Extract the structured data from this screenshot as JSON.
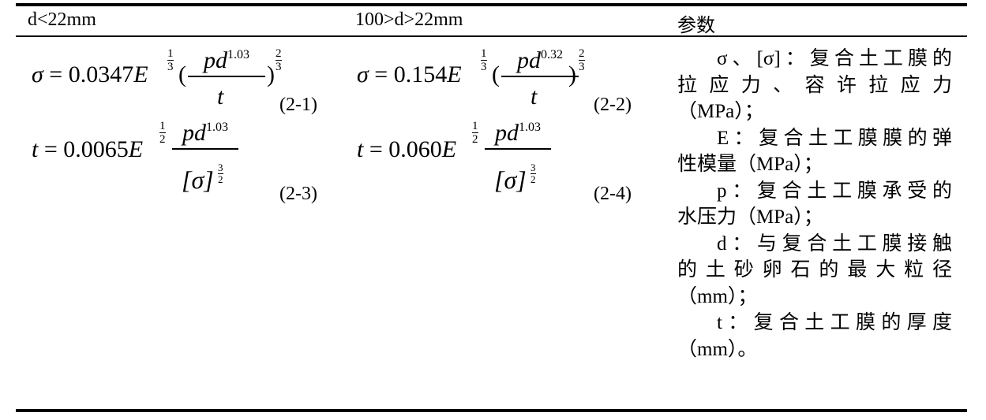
{
  "headers": [
    "d<22mm",
    "100>d>22mm",
    "参数"
  ],
  "formulas": {
    "f1": {
      "lhs": "σ",
      "coef": "0.0347",
      "base": "E",
      "exp_num": "1",
      "exp_den": "3",
      "num": "pd",
      "num_exp": "1.03",
      "den": "t",
      "out_num": "2",
      "out_den": "3",
      "label": "(2-1)"
    },
    "f2": {
      "lhs": "σ",
      "coef": "0.154",
      "base": "E",
      "exp_num": "1",
      "exp_den": "3",
      "num": "pd",
      "num_exp": "0.32",
      "den": "t",
      "out_num": "2",
      "out_den": "3",
      "label": "(2-2)"
    },
    "f3": {
      "lhs": "t",
      "coef": "0.0065",
      "base": "E",
      "exp_num": "1",
      "exp_den": "2",
      "num": "pd",
      "num_exp": "1.03",
      "den": "[σ]",
      "den_num": "3",
      "den_den": "2",
      "label": "(2-3)"
    },
    "f4": {
      "lhs": "t",
      "coef": "0.060",
      "base": "E",
      "exp_num": "1",
      "exp_den": "2",
      "num": "pd",
      "num_exp": "1.03",
      "den": "[σ]",
      "den_num": "3",
      "den_den": "2",
      "label": "(2-4)"
    }
  },
  "params": [
    "σ、[σ]：复合土工膜的",
    "拉应力、容许拉应力",
    "（MPa）；",
    "E：复合土工膜膜的弹",
    "性模量（MPa）；",
    "p：复合土工膜承受的",
    "水压力（MPa）；",
    "d：与复合土工膜接触",
    "的土砂卵石的最大粒径",
    "（mm）；",
    "t：复合土工膜的厚度",
    "（mm）。"
  ]
}
